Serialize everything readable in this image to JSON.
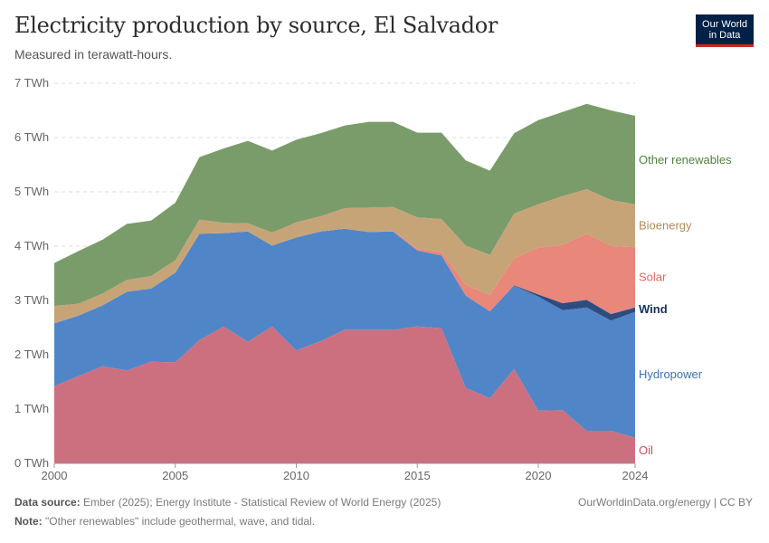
{
  "header": {
    "title": "Electricity production by source, El Salvador",
    "subtitle": "Measured in terawatt-hours.",
    "logo_line1": "Our World",
    "logo_line2": "in Data"
  },
  "footer": {
    "source_label": "Data source:",
    "source_text": "Ember (2025); Energy Institute - Statistical Review of World Energy (2025)",
    "note_label": "Note:",
    "note_text": "\"Other renewables\" include geothermal, wave, and tidal.",
    "credit": "OurWorldinData.org/energy | CC BY"
  },
  "chart_data": {
    "type": "area",
    "stacked": true,
    "x": [
      2000,
      2001,
      2002,
      2003,
      2004,
      2005,
      2006,
      2007,
      2008,
      2009,
      2010,
      2011,
      2012,
      2013,
      2014,
      2015,
      2016,
      2017,
      2018,
      2019,
      2020,
      2021,
      2022,
      2023,
      2024
    ],
    "x_ticks": [
      "2000",
      "2005",
      "2010",
      "2015",
      "2020",
      "2024"
    ],
    "x_tick_values": [
      2000,
      2005,
      2010,
      2015,
      2020,
      2024
    ],
    "y_ticks": [
      "0 TWh",
      "1 TWh",
      "2 TWh",
      "3 TWh",
      "4 TWh",
      "5 TWh",
      "6 TWh",
      "7 TWh"
    ],
    "y_tick_values": [
      0,
      1,
      2,
      3,
      4,
      5,
      6,
      7
    ],
    "ylim": [
      0,
      7
    ],
    "series": [
      {
        "name": "Oil",
        "color": "#cc7080",
        "label_color": "#c0505f",
        "values": [
          1.42,
          1.61,
          1.79,
          1.71,
          1.87,
          1.86,
          2.27,
          2.52,
          2.24,
          2.52,
          2.08,
          2.25,
          2.46,
          2.46,
          2.46,
          2.52,
          2.49,
          1.39,
          1.2,
          1.74,
          0.97,
          0.98,
          0.6,
          0.6,
          0.47
        ]
      },
      {
        "name": "Hydropower",
        "color": "#5086c7",
        "label_color": "#3c72b4",
        "values": [
          1.16,
          1.11,
          1.12,
          1.45,
          1.35,
          1.65,
          1.96,
          1.72,
          2.03,
          1.49,
          2.08,
          2.02,
          1.86,
          1.8,
          1.81,
          1.4,
          1.34,
          1.7,
          1.6,
          1.53,
          2.1,
          1.84,
          2.27,
          2.03,
          2.32
        ]
      },
      {
        "name": "Wind",
        "color": "#2d4d80",
        "label_color": "#14325f",
        "values": [
          0,
          0,
          0,
          0,
          0,
          0,
          0,
          0,
          0,
          0,
          0,
          0,
          0,
          0,
          0,
          0,
          0,
          0,
          0,
          0.01,
          0.04,
          0.13,
          0.14,
          0.12,
          0.08
        ]
      },
      {
        "name": "Solar",
        "color": "#e8877a",
        "label_color": "#e0685a",
        "values": [
          0,
          0,
          0,
          0,
          0,
          0,
          0,
          0,
          0,
          0,
          0,
          0,
          0,
          0,
          0.01,
          0.03,
          0.06,
          0.2,
          0.3,
          0.5,
          0.86,
          1.07,
          1.22,
          1.25,
          1.11
        ]
      },
      {
        "name": "Bioenergy",
        "color": "#c7a478",
        "label_color": "#b08a5a",
        "values": [
          0.32,
          0.22,
          0.22,
          0.22,
          0.23,
          0.23,
          0.26,
          0.19,
          0.15,
          0.24,
          0.28,
          0.28,
          0.38,
          0.45,
          0.44,
          0.58,
          0.61,
          0.72,
          0.74,
          0.82,
          0.8,
          0.9,
          0.82,
          0.85,
          0.79
        ]
      },
      {
        "name": "Other renewables",
        "color": "#7a9c6a",
        "label_color": "#4f7f3c",
        "values": [
          0.79,
          0.97,
          0.99,
          1.03,
          1.02,
          1.06,
          1.15,
          1.37,
          1.52,
          1.51,
          1.52,
          1.53,
          1.52,
          1.58,
          1.57,
          1.56,
          1.59,
          1.57,
          1.55,
          1.48,
          1.55,
          1.55,
          1.57,
          1.65,
          1.63
        ]
      }
    ]
  }
}
